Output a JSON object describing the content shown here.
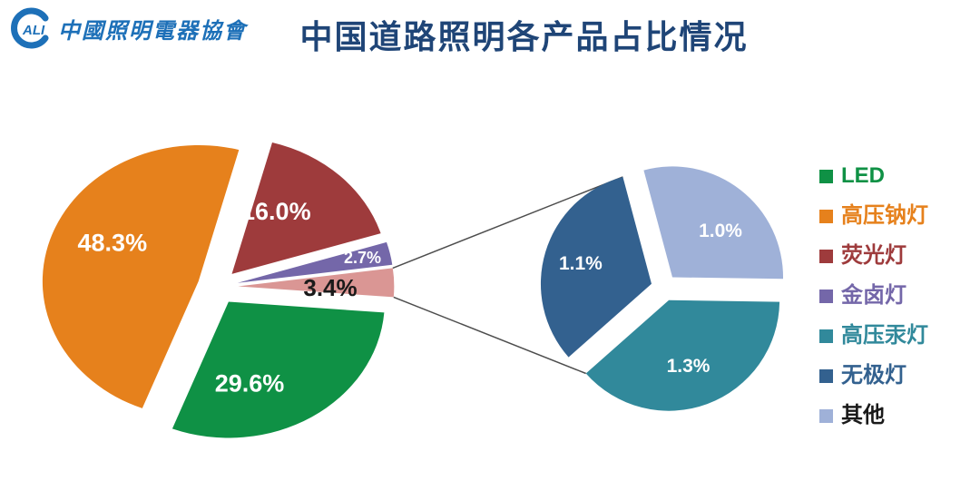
{
  "page": {
    "background": "#FFFFFF"
  },
  "header": {
    "logo": {
      "mark_letter": "C",
      "mark_text": "ALI",
      "org_name": "中國照明電器協會",
      "color": "#1D70B8"
    },
    "title": {
      "text": "中国道路照明各产品占比情况",
      "color": "#1F4577"
    }
  },
  "chart_data": {
    "type": "pie",
    "variant": "pie-of-pie",
    "title": "中国道路照明各产品占比情况",
    "value_unit": "%",
    "legend_position": "right",
    "main_pie": {
      "slices": [
        {
          "name": "荧光灯",
          "value": 16.0,
          "label": "16.0%",
          "color": "#9E3B3C",
          "label_color": "#FFFFFF"
        },
        {
          "name": "金卤灯",
          "value": 2.7,
          "label": "2.7%",
          "color": "#7467A9",
          "label_color": "#FFFFFF"
        },
        {
          "name": "高压汞灯+无极灯+其他",
          "value": 3.4,
          "label": "3.4%",
          "color": "#DA9694",
          "label_color": "#1A1A1A"
        },
        {
          "name": "LED",
          "value": 29.6,
          "label": "29.6%",
          "color": "#0F9145",
          "label_color": "#FFFFFF"
        },
        {
          "name": "高压钠灯",
          "value": 48.3,
          "label": "48.3%",
          "color": "#E6811C",
          "label_color": "#FFFFFF"
        }
      ]
    },
    "secondary_pie": {
      "slices": [
        {
          "name": "其他",
          "value": 1.0,
          "label": "1.0%",
          "color": "#9FB1D8",
          "label_color": "#FFFFFF"
        },
        {
          "name": "高压汞灯",
          "value": 1.3,
          "label": "1.3%",
          "color": "#31899B",
          "label_color": "#FFFFFF"
        },
        {
          "name": "无极灯",
          "value": 1.1,
          "label": "1.1%",
          "color": "#33618F",
          "label_color": "#FFFFFF"
        }
      ]
    },
    "legend": [
      {
        "label": "LED",
        "color": "#0F9145",
        "text_color": "#0F9145"
      },
      {
        "label": "高压钠灯",
        "color": "#E6811C",
        "text_color": "#E6811C"
      },
      {
        "label": "荧光灯",
        "color": "#9E3B3C",
        "text_color": "#9E3B3C"
      },
      {
        "label": "金卤灯",
        "color": "#7467A9",
        "text_color": "#7467A9"
      },
      {
        "label": "高压汞灯",
        "color": "#31899B",
        "text_color": "#31899B"
      },
      {
        "label": "无极灯",
        "color": "#33618F",
        "text_color": "#33618F"
      },
      {
        "label": "其他",
        "color": "#9FB1D8",
        "text_color": "#1A1A1A"
      }
    ],
    "connector_color": "#4D4D4D"
  }
}
